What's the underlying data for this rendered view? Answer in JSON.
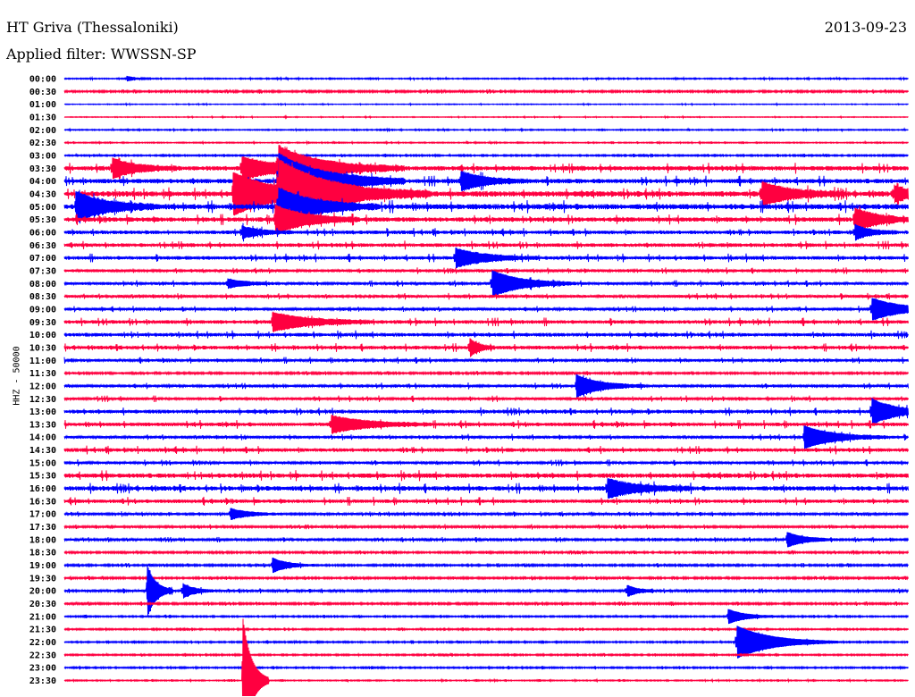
{
  "header": {
    "station": "HT Griva (Thessaloniki)",
    "filter": "Applied filter: WWSSN-SP",
    "date": "2013-09-23"
  },
  "chart_data": {
    "type": "line",
    "title": "HT Griva (Thessaloniki)",
    "ylabel": "HHZ - 50000",
    "xlabel": "",
    "minutes_per_line": 30,
    "colors": [
      "#0000ff",
      "#ff0040"
    ],
    "row_labels": [
      "00:00",
      "00:30",
      "01:00",
      "01:30",
      "02:00",
      "02:30",
      "03:00",
      "03:30",
      "04:00",
      "04:30",
      "05:00",
      "05:30",
      "06:00",
      "06:30",
      "07:00",
      "07:30",
      "08:00",
      "08:30",
      "09:00",
      "09:30",
      "10:00",
      "10:30",
      "11:00",
      "11:30",
      "12:00",
      "12:30",
      "13:00",
      "13:30",
      "14:00",
      "14:30",
      "15:00",
      "15:30",
      "16:00",
      "16:30",
      "17:00",
      "17:30",
      "18:00",
      "18:30",
      "19:00",
      "19:30",
      "20:00",
      "20:30",
      "21:00",
      "21:30",
      "22:00",
      "22:30",
      "23:00",
      "23:30"
    ],
    "noise_level": [
      0.6,
      1,
      0.4,
      0.4,
      0.6,
      0.6,
      0.8,
      2.5,
      2.5,
      3,
      3,
      2.5,
      2,
      2,
      2,
      1.5,
      1.5,
      1.5,
      1.5,
      2,
      2,
      2,
      1.5,
      1,
      1.5,
      1.5,
      2,
      2,
      1.5,
      2,
      1.5,
      2.5,
      2.5,
      2,
      1.2,
      1.2,
      1.2,
      1,
      1,
      1,
      1.2,
      1,
      0.8,
      0.8,
      0.8,
      0.8,
      0.8,
      0.6
    ],
    "events": [
      {
        "row": 0,
        "t": 2.2,
        "amp": 3,
        "dur": 0.3
      },
      {
        "row": 7,
        "t": 1.7,
        "amp": 10,
        "dur": 0.8
      },
      {
        "row": 7,
        "t": 6.3,
        "amp": 12,
        "dur": 1.2
      },
      {
        "row": 7,
        "t": 7.6,
        "amp": 20,
        "dur": 1.5
      },
      {
        "row": 8,
        "t": 7.6,
        "amp": 30,
        "dur": 1.5
      },
      {
        "row": 8,
        "t": 14.1,
        "amp": 10,
        "dur": 0.8
      },
      {
        "row": 9,
        "t": 6.0,
        "amp": 22,
        "dur": 1.5
      },
      {
        "row": 9,
        "t": 7.6,
        "amp": 30,
        "dur": 1.8
      },
      {
        "row": 9,
        "t": 24.8,
        "amp": 12,
        "dur": 1
      },
      {
        "row": 9,
        "t": 29.5,
        "amp": 8,
        "dur": 0.6
      },
      {
        "row": 10,
        "t": 0.4,
        "amp": 16,
        "dur": 1
      },
      {
        "row": 10,
        "t": 7.6,
        "amp": 20,
        "dur": 1.2
      },
      {
        "row": 11,
        "t": 7.5,
        "amp": 15,
        "dur": 1
      },
      {
        "row": 11,
        "t": 28.1,
        "amp": 12,
        "dur": 0.8
      },
      {
        "row": 12,
        "t": 6.3,
        "amp": 6,
        "dur": 0.6
      },
      {
        "row": 12,
        "t": 28.1,
        "amp": 8,
        "dur": 0.5
      },
      {
        "row": 14,
        "t": 13.9,
        "amp": 10,
        "dur": 1
      },
      {
        "row": 16,
        "t": 5.8,
        "amp": 5,
        "dur": 0.6
      },
      {
        "row": 16,
        "t": 15.2,
        "amp": 14,
        "dur": 1
      },
      {
        "row": 18,
        "t": 28.7,
        "amp": 12,
        "dur": 1
      },
      {
        "row": 19,
        "t": 7.4,
        "amp": 10,
        "dur": 1.2
      },
      {
        "row": 21,
        "t": 14.4,
        "amp": 10,
        "dur": 0.3
      },
      {
        "row": 24,
        "t": 18.2,
        "amp": 12,
        "dur": 0.8
      },
      {
        "row": 26,
        "t": 28.7,
        "amp": 14,
        "dur": 0.8
      },
      {
        "row": 27,
        "t": 9.5,
        "amp": 9,
        "dur": 1.2
      },
      {
        "row": 28,
        "t": 26.3,
        "amp": 12,
        "dur": 1
      },
      {
        "row": 32,
        "t": 19.3,
        "amp": 10,
        "dur": 1
      },
      {
        "row": 34,
        "t": 5.9,
        "amp": 6,
        "dur": 0.6
      },
      {
        "row": 36,
        "t": 25.7,
        "amp": 8,
        "dur": 0.6
      },
      {
        "row": 38,
        "t": 7.4,
        "amp": 8,
        "dur": 0.5
      },
      {
        "row": 40,
        "t": 2.95,
        "amp": 28,
        "dur": 0.3
      },
      {
        "row": 40,
        "t": 4.2,
        "amp": 8,
        "dur": 0.4
      },
      {
        "row": 40,
        "t": 20,
        "amp": 6,
        "dur": 0.4
      },
      {
        "row": 42,
        "t": 23.6,
        "amp": 8,
        "dur": 0.6
      },
      {
        "row": 44,
        "t": 23.9,
        "amp": 18,
        "dur": 1.2
      },
      {
        "row": 47,
        "t": 6.35,
        "amp": 70,
        "dur": 0.3
      }
    ]
  }
}
